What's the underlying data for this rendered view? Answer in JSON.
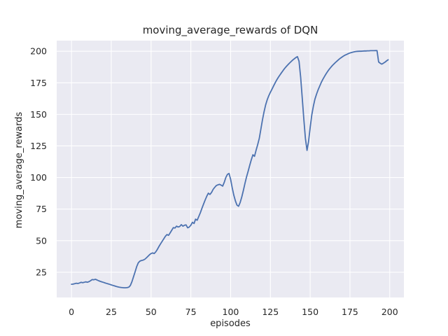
{
  "chart_data": {
    "type": "line",
    "title": "moving_average_rewards of DQN",
    "xlabel": "episodes",
    "ylabel": "moving_average_rewards",
    "x_ticks": [
      0,
      25,
      50,
      75,
      100,
      125,
      150,
      175,
      200
    ],
    "y_ticks": [
      25,
      50,
      75,
      100,
      125,
      150,
      175,
      200
    ],
    "xlim": [
      -9.3,
      208.9
    ],
    "ylim": [
      5.0,
      208.4
    ],
    "grid": true,
    "legend_position": "none",
    "style": {
      "line_color": "#4C72B0",
      "line_width": 1.8,
      "plot_bg": "#EAEAF2",
      "grid_color": "#FFFFFF",
      "fig_bg": "#FFFFFF",
      "text_color": "#262626"
    },
    "series": [
      {
        "name": "moving_average_rewards",
        "points": [
          [
            0,
            15.5
          ],
          [
            1,
            15.6
          ],
          [
            2,
            15.9
          ],
          [
            3,
            16.3
          ],
          [
            4,
            16.1
          ],
          [
            5,
            16.5
          ],
          [
            6,
            17.0
          ],
          [
            7,
            16.7
          ],
          [
            8,
            17.0
          ],
          [
            9,
            17.4
          ],
          [
            10,
            17.1
          ],
          [
            11,
            17.5
          ],
          [
            12,
            18.3
          ],
          [
            13,
            19.2
          ],
          [
            14,
            19.0
          ],
          [
            15,
            19.4
          ],
          [
            16,
            18.9
          ],
          [
            17,
            18.3
          ],
          [
            18,
            17.8
          ],
          [
            19,
            17.4
          ],
          [
            20,
            17.0
          ],
          [
            21,
            16.6
          ],
          [
            22,
            16.2
          ],
          [
            23,
            15.8
          ],
          [
            24,
            15.4
          ],
          [
            25,
            15.0
          ],
          [
            26,
            14.6
          ],
          [
            27,
            14.2
          ],
          [
            28,
            13.8
          ],
          [
            29,
            13.5
          ],
          [
            30,
            13.2
          ],
          [
            31,
            13.0
          ],
          [
            32,
            12.8
          ],
          [
            33,
            12.7
          ],
          [
            34,
            12.7
          ],
          [
            35,
            12.8
          ],
          [
            36,
            13.2
          ],
          [
            37,
            14.5
          ],
          [
            38,
            17.5
          ],
          [
            39,
            21.5
          ],
          [
            40,
            25.5
          ],
          [
            41,
            29.5
          ],
          [
            42,
            32.5
          ],
          [
            43,
            33.8
          ],
          [
            44,
            34.3
          ],
          [
            45,
            34.6
          ],
          [
            46,
            35.2
          ],
          [
            47,
            36.3
          ],
          [
            48,
            37.6
          ],
          [
            49,
            38.8
          ],
          [
            50,
            39.8
          ],
          [
            51,
            40.3
          ],
          [
            52,
            39.8
          ],
          [
            53,
            41.2
          ],
          [
            54,
            43.2
          ],
          [
            55,
            45.5
          ],
          [
            56,
            47.5
          ],
          [
            57,
            49.5
          ],
          [
            58,
            51.5
          ],
          [
            59,
            53.5
          ],
          [
            60,
            54.8
          ],
          [
            61,
            54.2
          ],
          [
            62,
            56.2
          ],
          [
            63,
            58.2
          ],
          [
            64,
            60.3
          ],
          [
            65,
            60.0
          ],
          [
            66,
            61.5
          ],
          [
            67,
            60.8
          ],
          [
            68,
            61.2
          ],
          [
            69,
            62.7
          ],
          [
            70,
            61.5
          ],
          [
            71,
            62.2
          ],
          [
            72,
            62.5
          ],
          [
            73,
            60.2
          ],
          [
            74,
            60.8
          ],
          [
            75,
            62.2
          ],
          [
            76,
            64.5
          ],
          [
            77,
            63.6
          ],
          [
            78,
            67.0
          ],
          [
            79,
            66.2
          ],
          [
            80,
            69.2
          ],
          [
            81,
            72.2
          ],
          [
            82,
            75.6
          ],
          [
            83,
            79.0
          ],
          [
            84,
            82.2
          ],
          [
            85,
            85.2
          ],
          [
            86,
            87.6
          ],
          [
            87,
            86.6
          ],
          [
            88,
            88.2
          ],
          [
            89,
            90.6
          ],
          [
            90,
            92.2
          ],
          [
            91,
            93.6
          ],
          [
            92,
            94.2
          ],
          [
            93,
            94.6
          ],
          [
            94,
            94.0
          ],
          [
            95,
            93.2
          ],
          [
            96,
            96.2
          ],
          [
            97,
            100.0
          ],
          [
            98,
            102.5
          ],
          [
            99,
            103.2
          ],
          [
            100,
            98.5
          ],
          [
            101,
            92.0
          ],
          [
            102,
            86.0
          ],
          [
            103,
            81.5
          ],
          [
            104,
            78.2
          ],
          [
            105,
            77.2
          ],
          [
            106,
            80.2
          ],
          [
            107,
            84.6
          ],
          [
            108,
            89.6
          ],
          [
            109,
            95.2
          ],
          [
            110,
            100.5
          ],
          [
            111,
            105.0
          ],
          [
            112,
            109.5
          ],
          [
            113,
            114.0
          ],
          [
            114,
            118.0
          ],
          [
            115,
            116.8
          ],
          [
            116,
            121.5
          ],
          [
            117,
            126.0
          ],
          [
            118,
            131.0
          ],
          [
            119,
            138.0
          ],
          [
            120,
            145.5
          ],
          [
            121,
            152.0
          ],
          [
            122,
            157.5
          ],
          [
            123,
            161.5
          ],
          [
            124,
            164.8
          ],
          [
            125,
            167.5
          ],
          [
            126,
            170.0
          ],
          [
            127,
            172.5
          ],
          [
            128,
            175.0
          ],
          [
            129,
            177.3
          ],
          [
            130,
            179.3
          ],
          [
            131,
            181.2
          ],
          [
            132,
            183.0
          ],
          [
            133,
            184.8
          ],
          [
            134,
            186.4
          ],
          [
            135,
            187.9
          ],
          [
            136,
            189.3
          ],
          [
            137,
            190.6
          ],
          [
            138,
            191.8
          ],
          [
            139,
            193.0
          ],
          [
            140,
            194.0
          ],
          [
            141,
            195.0
          ],
          [
            142,
            195.7
          ],
          [
            143,
            192.0
          ],
          [
            144,
            179.5
          ],
          [
            145,
            163.5
          ],
          [
            146,
            146.5
          ],
          [
            147,
            131.0
          ],
          [
            148,
            121.5
          ],
          [
            149,
            128.5
          ],
          [
            150,
            139.5
          ],
          [
            151,
            149.5
          ],
          [
            152,
            156.5
          ],
          [
            153,
            162.0
          ],
          [
            154,
            166.0
          ],
          [
            155,
            169.5
          ],
          [
            156,
            172.5
          ],
          [
            157,
            175.3
          ],
          [
            158,
            177.8
          ],
          [
            159,
            180.0
          ],
          [
            160,
            182.1
          ],
          [
            161,
            184.0
          ],
          [
            162,
            185.8
          ],
          [
            163,
            187.3
          ],
          [
            164,
            188.7
          ],
          [
            165,
            190.0
          ],
          [
            166,
            191.2
          ],
          [
            167,
            192.4
          ],
          [
            168,
            193.5
          ],
          [
            169,
            194.5
          ],
          [
            170,
            195.4
          ],
          [
            171,
            196.2
          ],
          [
            172,
            196.9
          ],
          [
            173,
            197.5
          ],
          [
            174,
            198.1
          ],
          [
            175,
            198.6
          ],
          [
            176,
            199.0
          ],
          [
            177,
            199.3
          ],
          [
            178,
            199.6
          ],
          [
            179,
            199.8
          ],
          [
            180,
            199.9
          ],
          [
            181,
            200.0
          ],
          [
            182,
            200.0
          ],
          [
            183,
            200.1
          ],
          [
            184,
            200.2
          ],
          [
            185,
            200.2
          ],
          [
            186,
            200.3
          ],
          [
            187,
            200.3
          ],
          [
            188,
            200.4
          ],
          [
            189,
            200.4
          ],
          [
            190,
            200.4
          ],
          [
            191,
            200.5
          ],
          [
            192,
            200.5
          ],
          [
            193,
            191.5
          ],
          [
            194,
            190.5
          ],
          [
            195,
            189.8
          ],
          [
            196,
            190.5
          ],
          [
            197,
            191.3
          ],
          [
            198,
            192.3
          ],
          [
            199,
            193.2
          ]
        ]
      }
    ]
  }
}
